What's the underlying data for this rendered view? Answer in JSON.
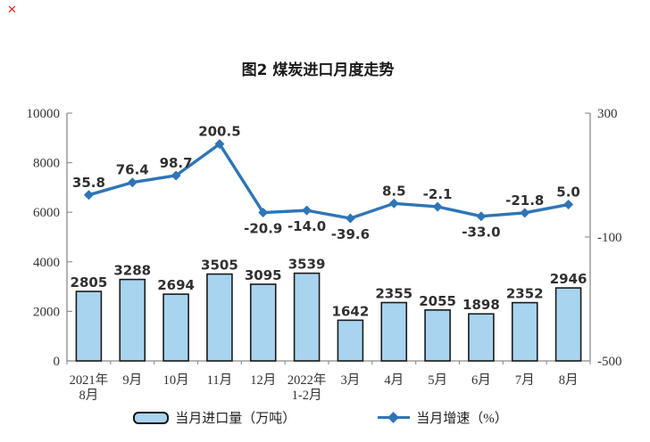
{
  "window": {
    "broken_image_mark": "✕"
  },
  "chart_data": {
    "type": "combo-bar-line",
    "title": "图2 煤炭进口月度走势",
    "categories": [
      [
        "2021年",
        "8月"
      ],
      [
        "9月"
      ],
      [
        "10月"
      ],
      [
        "11月"
      ],
      [
        "12月"
      ],
      [
        "2022年",
        "1-2月"
      ],
      [
        "3月"
      ],
      [
        "4月"
      ],
      [
        "5月"
      ],
      [
        "6月"
      ],
      [
        "7月"
      ],
      [
        "8月"
      ]
    ],
    "series": [
      {
        "name": "当月进口量（万吨）",
        "type": "bar",
        "axis": "left",
        "values": [
          2805,
          3288,
          2694,
          3505,
          3095,
          3539,
          1642,
          2355,
          2055,
          1898,
          2352,
          2946
        ]
      },
      {
        "name": "当月增速（%）",
        "type": "line",
        "axis": "right",
        "values": [
          35.8,
          76.4,
          98.7,
          200.5,
          -20.9,
          -14.0,
          -39.6,
          8.5,
          -2.1,
          -33.0,
          -21.8,
          5.0
        ],
        "label_placement": [
          "above",
          "above",
          "above",
          "above",
          "below",
          "below",
          "below",
          "above",
          "above",
          "below",
          "above",
          "above"
        ]
      }
    ],
    "left_axis": {
      "min": 0,
      "max": 10000,
      "ticks": [
        0,
        2000,
        4000,
        6000,
        8000,
        10000
      ]
    },
    "right_axis": {
      "min": -500,
      "max": 300,
      "ticks": [
        -500,
        -100,
        300
      ]
    },
    "legend_position": "bottom",
    "grid": false
  },
  "legend": {
    "bar_label": "当月进口量（万吨）",
    "line_label": "当月增速（%）"
  },
  "colors": {
    "bar_fill": "#A8D4F0",
    "bar_border": "#1a1a1a",
    "line": "#2E75B6",
    "axis": "#8c8c8c",
    "label_text": "#303030",
    "tick_text": "#333333",
    "broken_mark": "#e8261f"
  }
}
